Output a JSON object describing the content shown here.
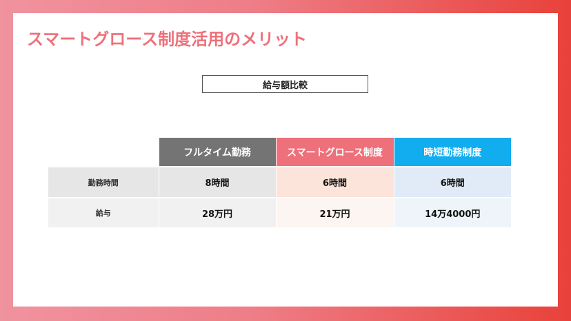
{
  "slide": {
    "title": "スマートグロース制度活用のメリット",
    "section_label": "給与額比較"
  },
  "table": {
    "columns": [
      "フルタイム勤務",
      "スマートグロース制度",
      "時短勤務制度"
    ],
    "rows": [
      {
        "label": "勤務時間",
        "values": [
          "8時間",
          "6時間",
          "6時間"
        ]
      },
      {
        "label": "給与",
        "values": [
          "28万円",
          "21万円",
          "14万4000円"
        ]
      }
    ]
  },
  "colors": {
    "accent_pink": "#ee707a",
    "header_gray": "#747474",
    "header_blue": "#12adef",
    "frame_red": "#e9413a"
  }
}
